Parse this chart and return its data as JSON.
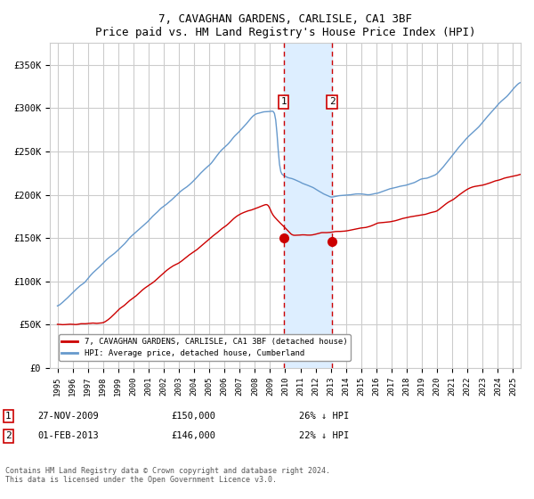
{
  "title": "7, CAVAGHAN GARDENS, CARLISLE, CA1 3BF",
  "subtitle": "Price paid vs. HM Land Registry's House Price Index (HPI)",
  "legend_label_red": "7, CAVAGHAN GARDENS, CARLISLE, CA1 3BF (detached house)",
  "legend_label_blue": "HPI: Average price, detached house, Cumberland",
  "annotation_footnote": "Contains HM Land Registry data © Crown copyright and database right 2024.\nThis data is licensed under the Open Government Licence v3.0.",
  "sale1_date": "27-NOV-2009",
  "sale1_price": "£150,000",
  "sale1_pct": "26% ↓ HPI",
  "sale2_date": "01-FEB-2013",
  "sale2_price": "£146,000",
  "sale2_pct": "22% ↓ HPI",
  "vline1_x": 2009.9,
  "vline2_x": 2013.08,
  "dot1_x": 2009.9,
  "dot1_y": 150000,
  "dot2_x": 2013.08,
  "dot2_y": 146000,
  "ylim": [
    0,
    375000
  ],
  "xlim": [
    1994.5,
    2025.5
  ],
  "yticks": [
    0,
    50000,
    100000,
    150000,
    200000,
    250000,
    300000,
    350000
  ],
  "background_color": "#ffffff",
  "grid_color": "#cccccc",
  "red_color": "#cc0000",
  "blue_color": "#6699cc",
  "shade_color": "#ddeeff",
  "vline_color": "#cc0000"
}
